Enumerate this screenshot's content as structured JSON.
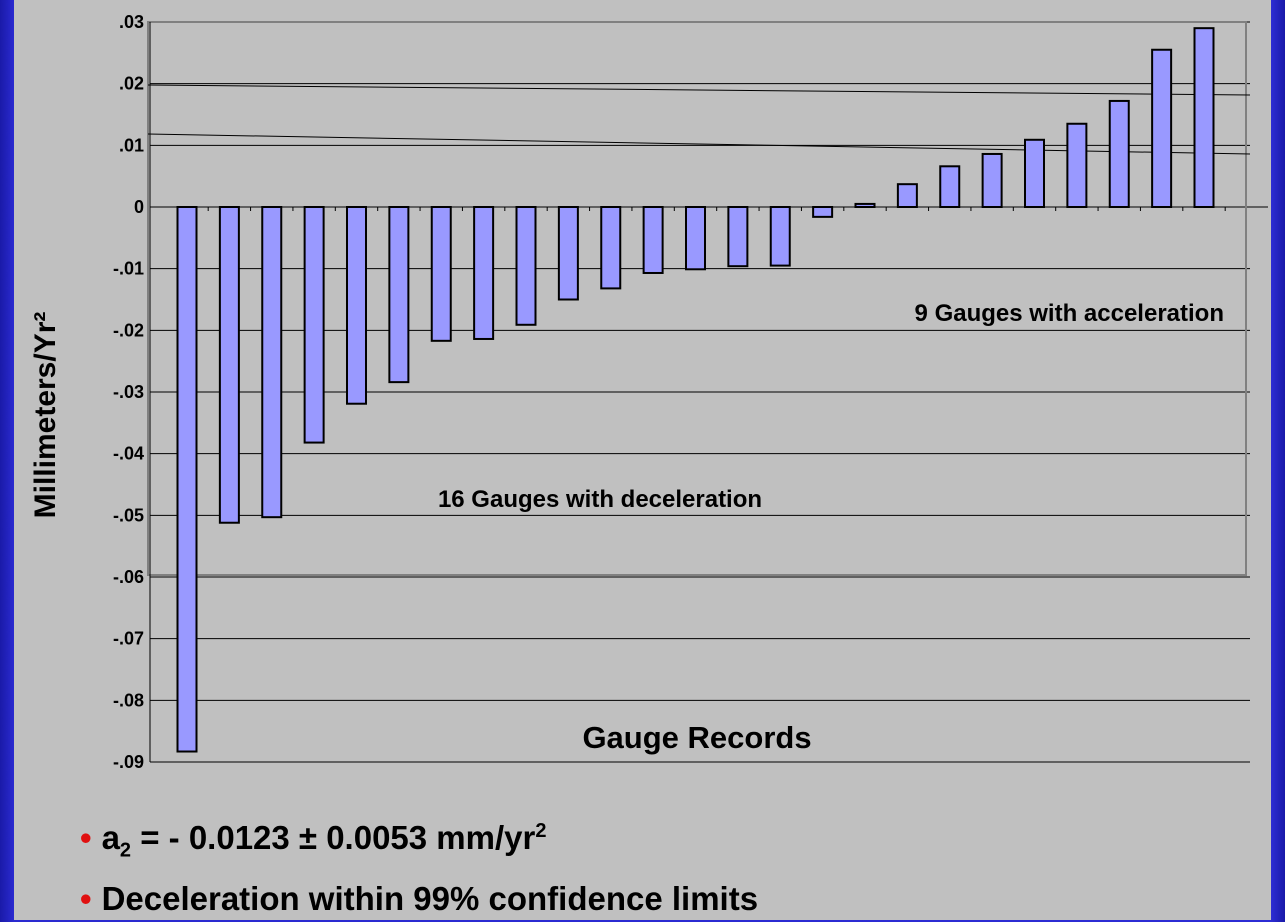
{
  "chart_data": {
    "type": "bar",
    "xlabel": "Gauge Records",
    "ylabel": "Millimeters/Yr²",
    "ylim": [
      -0.09,
      0.03
    ],
    "y_ticks": [
      ".03",
      ".02",
      ".01",
      "0",
      "-.01",
      "-.02",
      "-.03",
      "-.04",
      "-.05",
      "-.06",
      "-.07",
      "-.08",
      "-.09"
    ],
    "values": [
      -0.0883,
      -0.0512,
      -0.0503,
      -0.0382,
      -0.0319,
      -0.0284,
      -0.0217,
      -0.0214,
      -0.0191,
      -0.015,
      -0.0132,
      -0.0107,
      -0.0101,
      -0.0096,
      -0.0095,
      -0.0016,
      0.0005,
      0.0037,
      0.0066,
      0.0086,
      0.0109,
      0.0135,
      0.0172,
      0.0255,
      0.029
    ],
    "bar_color": "#9999ff",
    "grid": true,
    "annotations": [
      "9 Gauges with acceleration",
      "16 Gauges with deceleration"
    ]
  },
  "bullets": {
    "item1_main": "a",
    "item1_sub": "2",
    "item1_rest": " = - 0.0123 ± 0.0053 mm/yr",
    "item1_sup": "2",
    "item2": "Deceleration within 99% confidence limits"
  },
  "colors": {
    "background": "#c0c0c0",
    "border": "#2c2cd4",
    "bullet": "#e01010"
  }
}
